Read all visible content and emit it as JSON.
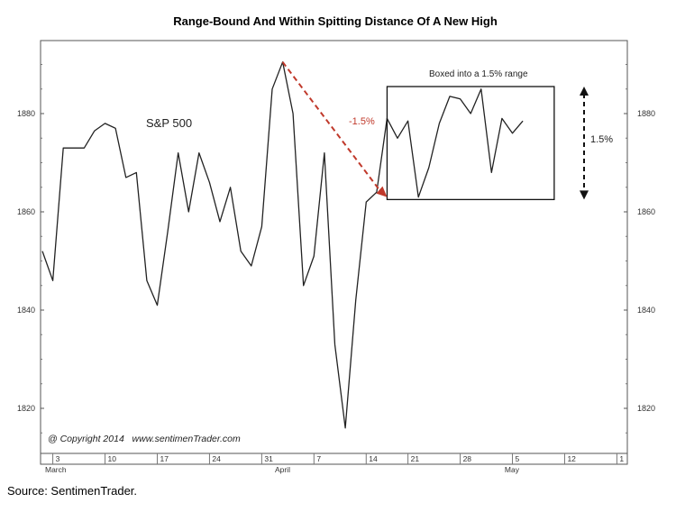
{
  "chart_data": {
    "type": "line",
    "title": "Range-Bound And Within Spitting Distance Of A New High",
    "series": [
      {
        "name": "S&P 500",
        "values": [
          1852,
          1846,
          1873,
          1873,
          1873,
          1876.5,
          1878,
          1877,
          1867,
          1868,
          1846,
          1841,
          1856,
          1872,
          1860,
          1872,
          1866,
          1858,
          1865,
          1852,
          1849,
          1857,
          1885,
          1890.5,
          1880,
          1845,
          1851,
          1872,
          1833,
          1816,
          1842,
          1862,
          1864,
          1879,
          1875,
          1878.5,
          1863,
          1869,
          1878,
          1883.5,
          1883,
          1880,
          1885,
          1868,
          1879,
          1876,
          1878.5
        ]
      }
    ],
    "series_label": "S&P 500",
    "ylim": [
      1812,
      1895
    ],
    "yticks": [
      1820,
      1840,
      1860,
      1880
    ],
    "xticks": [
      {
        "label": "3",
        "index": 1
      },
      {
        "label": "10",
        "index": 6
      },
      {
        "label": "17",
        "index": 11
      },
      {
        "label": "24",
        "index": 16
      },
      {
        "label": "31",
        "index": 21
      },
      {
        "label": "7",
        "index": 26
      },
      {
        "label": "14",
        "index": 31
      },
      {
        "label": "21",
        "index": 35
      },
      {
        "label": "28",
        "index": 40
      },
      {
        "label": "5",
        "index": 45
      },
      {
        "label": "12",
        "index": 50
      },
      {
        "label": "1",
        "index": 55
      }
    ],
    "months": [
      {
        "label": "March",
        "index": 0
      },
      {
        "label": "April",
        "index": 22
      },
      {
        "label": "May",
        "index": 44
      }
    ],
    "x_slots": 56,
    "annotations": {
      "decline_label": "-1.5%",
      "decline_from": {
        "index": 23,
        "value": 1890.5
      },
      "decline_to": {
        "index": 33,
        "value": 1863
      },
      "box_label": "Boxed into a 1.5% range",
      "box_x": [
        33,
        49
      ],
      "box_y": [
        1862.5,
        1885.5
      ],
      "range_label": "1.5%"
    },
    "copyright": "@ Copyright 2014   www.sentimenTrader.com",
    "grid": false,
    "line_color": "#222222",
    "arrow_color": "#c0392b"
  },
  "source": "Source: SentimenTrader."
}
